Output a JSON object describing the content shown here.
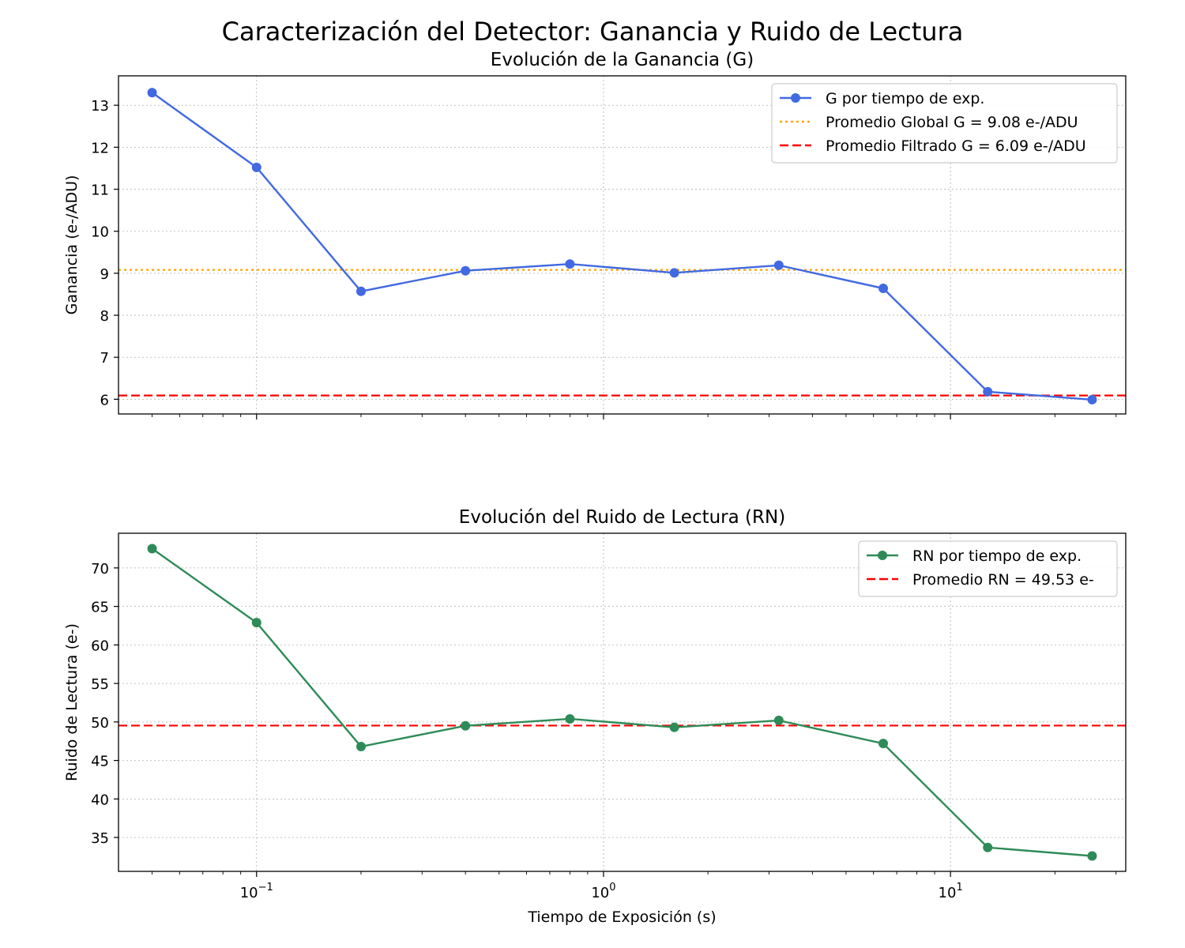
{
  "figure": {
    "suptitle": "Caracterización del Detector: Ganancia y Ruido de Lectura"
  },
  "chart_data": [
    {
      "type": "line",
      "title": "Evolución de la Ganancia (G)",
      "xlabel": "",
      "ylabel": "Ganancia (e-/ADU)",
      "xscale": "log",
      "xlim": [
        0.04,
        32
      ],
      "ylim": [
        5.65,
        13.7
      ],
      "yticks": [
        6,
        7,
        8,
        9,
        10,
        11,
        12,
        13
      ],
      "xticks": [
        0.1,
        1,
        10
      ],
      "xtick_labels": [],
      "grid": true,
      "legend_position": "upper right",
      "x": [
        0.05,
        0.1,
        0.2,
        0.4,
        0.8,
        1.6,
        3.2,
        6.4,
        12.8,
        25.6
      ],
      "series": [
        {
          "name": "G por tiempo de exp.",
          "values": [
            13.3,
            11.52,
            8.57,
            9.06,
            9.22,
            9.01,
            9.19,
            8.64,
            6.18,
            5.99
          ],
          "color": "#4169e1",
          "marker": "circle",
          "style": "solid"
        }
      ],
      "reference_lines": [
        {
          "label": "Promedio Global G = 9.08 e-/ADU",
          "y": 9.08,
          "color": "#ffa500",
          "style": "dotted"
        },
        {
          "label": "Promedio Filtrado G = 6.09 e-/ADU",
          "y": 6.09,
          "color": "#ff0000",
          "style": "dashed"
        }
      ]
    },
    {
      "type": "line",
      "title": "Evolución del Ruido de Lectura (RN)",
      "xlabel": "Tiempo de Exposición (s)",
      "ylabel": "Ruido de Lectura (e-)",
      "xscale": "log",
      "xlim": [
        0.04,
        32
      ],
      "ylim": [
        30.6,
        74.5
      ],
      "yticks": [
        35,
        40,
        45,
        50,
        55,
        60,
        65,
        70
      ],
      "xticks": [
        0.1,
        1,
        10
      ],
      "xtick_labels": [
        {
          "base": "10",
          "exp": "−1"
        },
        {
          "base": "10",
          "exp": "0"
        },
        {
          "base": "10",
          "exp": "1"
        }
      ],
      "grid": true,
      "legend_position": "upper right",
      "x": [
        0.05,
        0.1,
        0.2,
        0.4,
        0.8,
        1.6,
        3.2,
        6.4,
        12.8,
        25.6
      ],
      "series": [
        {
          "name": "RN por tiempo de exp.",
          "values": [
            72.5,
            62.9,
            46.8,
            49.5,
            50.4,
            49.3,
            50.2,
            47.2,
            33.7,
            32.6
          ],
          "color": "#2e8b57",
          "marker": "circle",
          "style": "solid"
        }
      ],
      "reference_lines": [
        {
          "label": "Promedio RN = 49.53 e-",
          "y": 49.53,
          "color": "#ff0000",
          "style": "dashed"
        }
      ]
    }
  ]
}
